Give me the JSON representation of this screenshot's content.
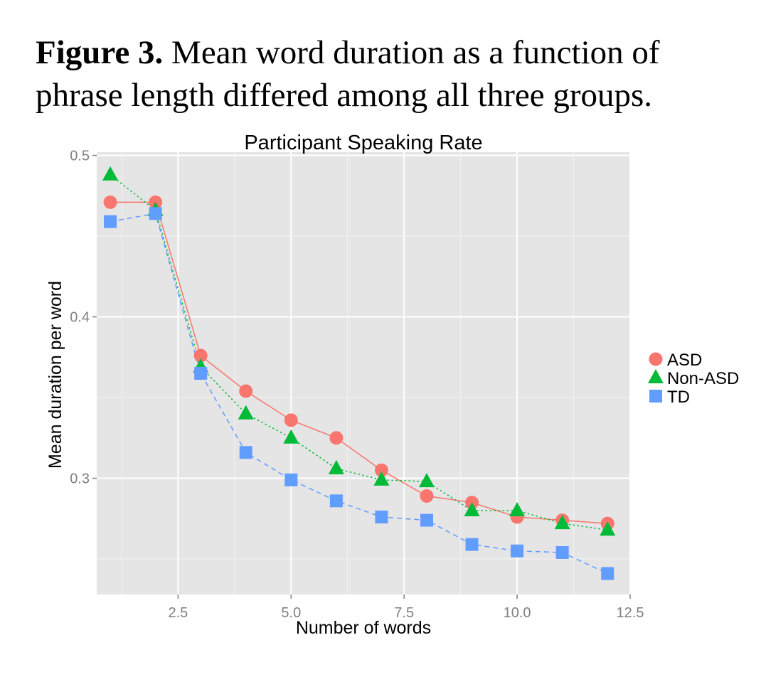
{
  "caption": {
    "label": "Figure 3.",
    "text": "Mean word duration as a function of phrase length differed among all three groups."
  },
  "chart_data": {
    "type": "line",
    "title": "Participant Speaking Rate",
    "xlabel": "Number of words",
    "ylabel": "Mean duration per word",
    "xlim": [
      0.7,
      12.5
    ],
    "ylim": [
      0.228,
      0.502
    ],
    "xticks": [
      2.5,
      5.0,
      7.5,
      10.0,
      12.5
    ],
    "xtick_labels": [
      "2.5",
      "5.0",
      "7.5",
      "10.0",
      "12.5"
    ],
    "yticks": [
      0.3,
      0.4,
      0.5
    ],
    "ytick_labels": [
      "0.3",
      "0.4",
      "0.5"
    ],
    "grid": true,
    "legend_position": "right",
    "x": [
      1,
      2,
      3,
      4,
      5,
      6,
      7,
      8,
      9,
      10,
      11,
      12
    ],
    "series": [
      {
        "name": "ASD",
        "marker": "circle",
        "linestyle": "solid",
        "color": "#F8766D",
        "values": [
          0.471,
          0.471,
          0.376,
          0.354,
          0.336,
          0.325,
          0.305,
          0.289,
          0.285,
          0.276,
          0.274,
          0.272
        ]
      },
      {
        "name": "Non-ASD",
        "marker": "triangle",
        "linestyle": "dotted",
        "color": "#00BA38",
        "values": [
          0.488,
          0.466,
          0.369,
          0.34,
          0.325,
          0.306,
          0.299,
          0.298,
          0.28,
          0.28,
          0.272,
          0.268
        ]
      },
      {
        "name": "TD",
        "marker": "square",
        "linestyle": "dashed",
        "color": "#619CFF",
        "values": [
          0.459,
          0.464,
          0.365,
          0.316,
          0.299,
          0.286,
          0.276,
          0.274,
          0.259,
          0.255,
          0.254,
          0.241
        ]
      }
    ]
  }
}
